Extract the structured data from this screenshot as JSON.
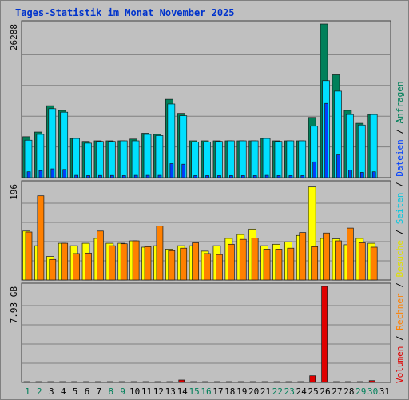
{
  "title": "Tages-Statistik im Monat November 2025",
  "chart_data": [
    {
      "type": "bar",
      "name": "requests-files-panel",
      "ymax_label": "26288",
      "ylim": [
        0,
        26288
      ],
      "series": [
        {
          "name": "Anfragen",
          "color": "#00805a",
          "values": [
            7000,
            7800,
            12300,
            11500,
            6700,
            6200,
            6300,
            6300,
            6300,
            6600,
            7600,
            7400,
            13400,
            11000,
            6300,
            6300,
            6300,
            6300,
            6300,
            6300,
            6700,
            6300,
            6300,
            6300,
            10300,
            26288,
            17600,
            11500,
            9300,
            10800
          ]
        },
        {
          "name": "Dateien",
          "color": "#0040ff",
          "values": [
            1000,
            1200,
            1500,
            1400,
            400,
            350,
            380,
            380,
            350,
            400,
            400,
            400,
            2400,
            2300,
            350,
            350,
            350,
            350,
            350,
            350,
            400,
            350,
            350,
            350,
            2700,
            12700,
            3900,
            1300,
            900,
            1000
          ]
        },
        {
          "name": "Seiten",
          "color": "#00e0ff",
          "values": [
            6400,
            7400,
            11800,
            11200,
            6700,
            5900,
            6200,
            6200,
            6300,
            6300,
            7400,
            7200,
            12600,
            10600,
            6100,
            6100,
            6200,
            6300,
            6300,
            6300,
            6700,
            6200,
            6300,
            6300,
            8800,
            16600,
            14800,
            10800,
            9000,
            10800
          ]
        }
      ]
    },
    {
      "type": "bar",
      "name": "visits-hosts-panel",
      "ymax_label": "196",
      "ylim": [
        0,
        196
      ],
      "series": [
        {
          "name": "Besuche",
          "color": "#ffff00",
          "values": [
            100,
            70,
            48,
            75,
            70,
            75,
            85,
            75,
            75,
            80,
            67,
            70,
            63,
            70,
            70,
            59,
            70,
            85,
            93,
            104,
            70,
            73,
            78,
            91,
            190,
            85,
            84,
            72,
            85,
            75
          ]
        },
        {
          "name": "Rechner",
          "color": "#ff8000",
          "values": [
            98,
            172,
            42,
            75,
            54,
            55,
            100,
            70,
            74,
            80,
            68,
            110,
            60,
            65,
            76,
            54,
            52,
            73,
            83,
            86,
            63,
            63,
            65,
            97,
            68,
            96,
            80,
            106,
            76,
            67
          ]
        }
      ]
    },
    {
      "type": "bar",
      "name": "volume-panel",
      "ymax_label": "7.93 GB",
      "ylim": [
        0,
        7.93
      ],
      "series": [
        {
          "name": "Volumen",
          "color": "#e00000",
          "values": [
            0.05,
            0.05,
            0.05,
            0.05,
            0.05,
            0.05,
            0.05,
            0.05,
            0.05,
            0.05,
            0.05,
            0.05,
            0.05,
            0.2,
            0.05,
            0.05,
            0.05,
            0.05,
            0.05,
            0.05,
            0.05,
            0.05,
            0.05,
            0.05,
            0.55,
            7.93,
            0.05,
            0.05,
            0.05,
            0.15
          ]
        }
      ]
    }
  ],
  "days": [
    {
      "label": "1",
      "weekend": true
    },
    {
      "label": "2",
      "weekend": true
    },
    {
      "label": "3",
      "weekend": false
    },
    {
      "label": "4",
      "weekend": false
    },
    {
      "label": "5",
      "weekend": false
    },
    {
      "label": "6",
      "weekend": false
    },
    {
      "label": "7",
      "weekend": false
    },
    {
      "label": "8",
      "weekend": true
    },
    {
      "label": "9",
      "weekend": true
    },
    {
      "label": "10",
      "weekend": false
    },
    {
      "label": "11",
      "weekend": false
    },
    {
      "label": "12",
      "weekend": false
    },
    {
      "label": "13",
      "weekend": false
    },
    {
      "label": "14",
      "weekend": false
    },
    {
      "label": "15",
      "weekend": true
    },
    {
      "label": "16",
      "weekend": true
    },
    {
      "label": "17",
      "weekend": false
    },
    {
      "label": "18",
      "weekend": false
    },
    {
      "label": "19",
      "weekend": false
    },
    {
      "label": "20",
      "weekend": false
    },
    {
      "label": "21",
      "weekend": false
    },
    {
      "label": "22",
      "weekend": true
    },
    {
      "label": "23",
      "weekend": true
    },
    {
      "label": "24",
      "weekend": false
    },
    {
      "label": "25",
      "weekend": false
    },
    {
      "label": "26",
      "weekend": false
    },
    {
      "label": "27",
      "weekend": false
    },
    {
      "label": "28",
      "weekend": false
    },
    {
      "label": "29",
      "weekend": true
    },
    {
      "label": "30",
      "weekend": true
    },
    {
      "label": "31",
      "weekend": false
    }
  ],
  "legend": [
    {
      "text": "Volumen",
      "color": "#e00000"
    },
    {
      "text": " / ",
      "color": "#000000"
    },
    {
      "text": "Rechner",
      "color": "#ff8000"
    },
    {
      "text": " / ",
      "color": "#000000"
    },
    {
      "text": "Besuche",
      "color": "#e0e000"
    },
    {
      "text": " / ",
      "color": "#000000"
    },
    {
      "text": "Seiten",
      "color": "#00c8e0"
    },
    {
      "text": " / ",
      "color": "#000000"
    },
    {
      "text": "Dateien",
      "color": "#0040ff"
    },
    {
      "text": " / ",
      "color": "#000000"
    },
    {
      "text": "Anfragen",
      "color": "#00805a"
    }
  ],
  "colors": {
    "weekday_label": "#000000",
    "weekend_label": "#00805a",
    "grid": "#808080",
    "panel_bg": "#c0c0c0"
  }
}
